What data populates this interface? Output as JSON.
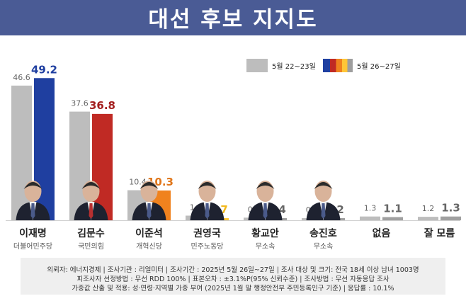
{
  "title": "대선 후보 지지도",
  "legend": {
    "prev_label": "5월 22~23일",
    "curr_label": "5월 26~27일",
    "prev_color": "#bdbdbd",
    "curr_colors": [
      "#1f3fa0",
      "#c02a24",
      "#f0821e",
      "#ffc637",
      "#9e9e9e"
    ]
  },
  "chart_data": {
    "type": "bar",
    "title": "대선 후보 지지도",
    "categories": [
      "이재명",
      "김문수",
      "이준석",
      "권영국",
      "황교안",
      "송진호",
      "없음",
      "잘 모름"
    ],
    "parties": [
      "더불어민주당",
      "국민의힘",
      "개혁신당",
      "민주노동당",
      "무소속",
      "무소속",
      "",
      ""
    ],
    "series": [
      {
        "name": "5월 22~23일",
        "values": [
          46.6,
          37.6,
          10.4,
          1.6,
          0.9,
          0.3,
          1.3,
          1.2
        ],
        "labels": [
          "46.6",
          "37.6",
          "10.4",
          "1.6",
          "0.9",
          "0.3",
          "1.3",
          "1.2"
        ],
        "color": "#bdbdbd"
      },
      {
        "name": "5월 26~27일",
        "values": [
          49.2,
          36.8,
          10.3,
          0.7,
          0.4,
          0.2,
          1.1,
          1.3
        ],
        "labels": [
          "49.2",
          "36.8",
          "10.3",
          "0.7",
          "0.4",
          "0.2",
          "1.1",
          "1.3"
        ],
        "colors": [
          "#1f3fa0",
          "#c02a24",
          "#f0821e",
          "#ffc637",
          "#a0a0a0",
          "#a0a0a0",
          "#a0a0a0",
          "#a0a0a0"
        ],
        "label_colors": [
          "#1f3fa0",
          "#a31d1d",
          "#e0761a",
          "#f2b81d",
          "#666666",
          "#666666",
          "#666666",
          "#666666"
        ]
      }
    ],
    "ylim": [
      0,
      50
    ],
    "grid": false,
    "legend_position": "top-right"
  },
  "footer": {
    "line1": "의뢰자: 에너지경제 | 조사기관 : 리얼미터 | 조사기간 : 2025년 5월 26일~27일 | 조사 대상 및 크기: 전국 18세 이상 남녀 1003명",
    "line2": "피조사자 선정방법 : 무선 RDD 100% | 표본오차 : ±3.1%P(95% 신뢰수준) | 조사방법 : 무선 자동응답 조사",
    "line3": "가중값 산출 및 적용: 성·연령·지역별 가중 부여 (2025년 1월 말 행정안전부 주민등록인구 기준) | 응답률 : 10.1%"
  }
}
